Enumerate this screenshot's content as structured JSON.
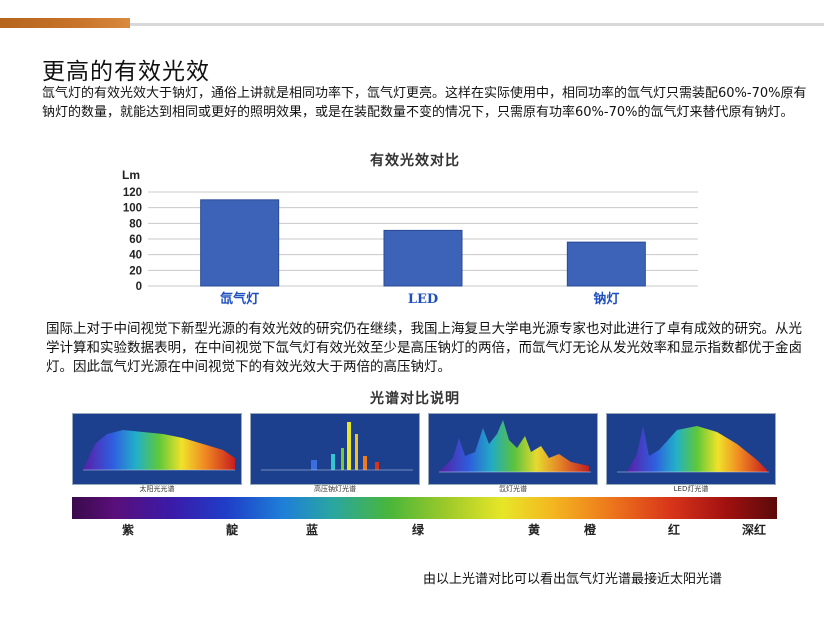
{
  "header": {
    "title": "更高的有效光效",
    "paragraph1": "氙气灯的有效光效大于钠灯，通俗上讲就是相同功率下，氙气灯更亮。这样在实际使用中，相同功率的氙气灯只需装配60%-70%原有钠灯的数量，就能达到相同或更好的照明效果，或是在装配数量不变的情况下，只需原有功率60%-70%的氙气灯来替代原有钠灯。"
  },
  "chart_data": {
    "type": "bar",
    "title": "有效光效对比",
    "ylabel": "Lm",
    "categories": [
      "氙气灯",
      "LED",
      "钠灯"
    ],
    "values": [
      110,
      71,
      56
    ],
    "ylim": [
      0,
      120
    ],
    "yticks": [
      "0",
      "20",
      "40",
      "60",
      "80",
      "100",
      "120"
    ],
    "bar_color": "#3d63b8",
    "label_color": "#1f4fbf"
  },
  "paragraph2": "国际上对于中间视觉下新型光源的有效光效的研究仍在继续，我国上海复旦大学电光源专家也对此进行了卓有成效的研究。从光学计算和实验数据表明，在中间视觉下氙气灯有效光效至少是高压钠灯的两倍，而氙气灯无论从发光效率和显示指数都优于金卤灯。因此氙气灯光源在中间视觉下的有效光效大于两倍的高压钠灯。",
  "spectrum": {
    "title": "光谱对比说明",
    "panels": [
      {
        "caption": "太阳光光谱"
      },
      {
        "caption": "高压钠灯光谱"
      },
      {
        "caption": "氙灯光谱"
      },
      {
        "caption": "LED灯光谱"
      }
    ],
    "colors": [
      "紫",
      "靛",
      "蓝",
      "绿",
      "黄",
      "橙",
      "红",
      "深红"
    ]
  },
  "footer": "由以上光谱对比可以看出氙气灯光谱最接近太阳光谱"
}
